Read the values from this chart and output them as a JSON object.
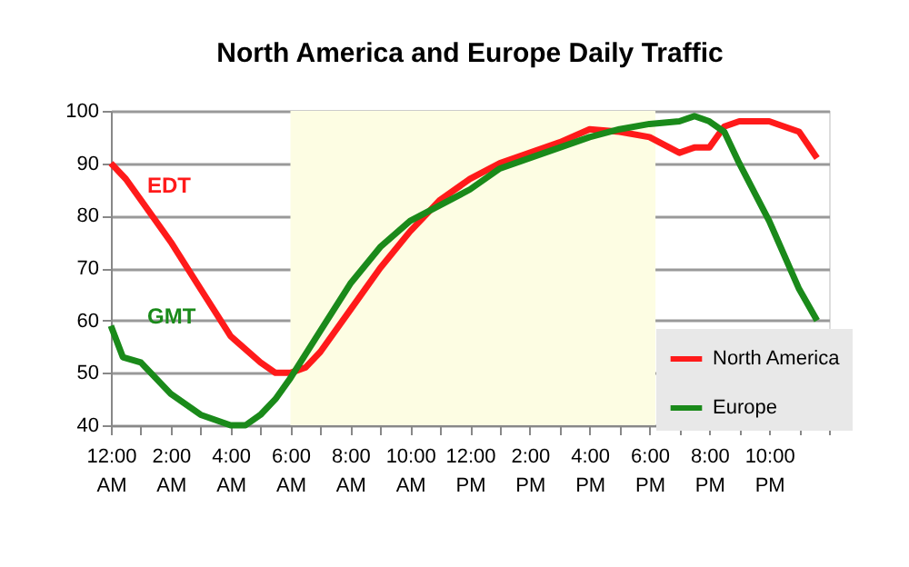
{
  "chart_data": {
    "type": "line",
    "title": "North America and Europe  Daily Traffic",
    "xlim": [
      0,
      24
    ],
    "ylim": [
      40,
      100
    ],
    "yticks": [
      40,
      50,
      60,
      70,
      80,
      90,
      100
    ],
    "xticks": [
      {
        "value": 0,
        "label": "12:00 AM"
      },
      {
        "value": 1,
        "label": null
      },
      {
        "value": 2,
        "label": "2:00 AM"
      },
      {
        "value": 3,
        "label": null
      },
      {
        "value": 4,
        "label": "4:00 AM"
      },
      {
        "value": 5,
        "label": null
      },
      {
        "value": 6,
        "label": "6:00 AM"
      },
      {
        "value": 7,
        "label": null
      },
      {
        "value": 8,
        "label": "8:00 AM"
      },
      {
        "value": 9,
        "label": null
      },
      {
        "value": 10,
        "label": "10:00 AM"
      },
      {
        "value": 11,
        "label": null
      },
      {
        "value": 12,
        "label": "12:00 PM"
      },
      {
        "value": 13,
        "label": null
      },
      {
        "value": 14,
        "label": "2:00 PM"
      },
      {
        "value": 15,
        "label": null
      },
      {
        "value": 16,
        "label": "4:00 PM"
      },
      {
        "value": 17,
        "label": null
      },
      {
        "value": 18,
        "label": "6:00 PM"
      },
      {
        "value": 19,
        "label": null
      },
      {
        "value": 20,
        "label": "8:00 PM"
      },
      {
        "value": 21,
        "label": null
      },
      {
        "value": 22,
        "label": "10:00 PM"
      },
      {
        "value": 23,
        "label": null
      },
      {
        "value": 24,
        "label": null
      }
    ],
    "grid": "y",
    "legend": "bottom right",
    "marker": "none",
    "line_style": "solid",
    "bands": [
      {
        "axis": "x",
        "from": 6,
        "to": 18.2,
        "color": "#fdfde3"
      }
    ],
    "annotations": [
      "EDT",
      "GMT"
    ],
    "series": [
      {
        "name": "North America",
        "color": "#ff1a1a",
        "x": [
          0,
          0.5,
          1,
          2,
          3,
          4,
          5,
          5.5,
          6,
          6.5,
          7,
          8,
          9,
          10,
          10.5,
          11,
          12,
          13,
          14,
          15,
          16,
          17,
          18,
          19,
          19.5,
          20,
          20.5,
          21,
          22,
          23,
          23.6
        ],
        "values": [
          90,
          87,
          83,
          75,
          66,
          57,
          52,
          50,
          50,
          51,
          54,
          62,
          70,
          77,
          80,
          83,
          87,
          90,
          92,
          94,
          96.5,
          96,
          95,
          92,
          93,
          93,
          97,
          98,
          98,
          96,
          91
        ]
      },
      {
        "name": "Europe",
        "color": "#1a8a1a",
        "x": [
          0,
          0.4,
          1,
          2,
          3,
          4,
          4.5,
          5,
          5.5,
          6,
          7,
          8,
          9,
          10,
          11,
          12,
          13,
          14,
          15,
          16,
          17,
          18,
          19,
          19.5,
          20,
          20.5,
          21,
          22,
          23,
          23.6
        ],
        "values": [
          59,
          53,
          52,
          46,
          42,
          40,
          40,
          42,
          45,
          49,
          58,
          67,
          74,
          79,
          82,
          85,
          89,
          91,
          93,
          95,
          96.5,
          97.5,
          98,
          99,
          98,
          96,
          90,
          79,
          66,
          60
        ]
      }
    ]
  }
}
